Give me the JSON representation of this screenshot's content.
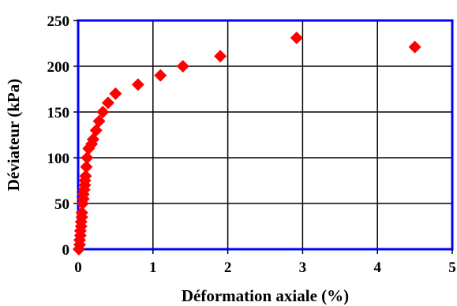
{
  "chart_data": {
    "type": "scatter",
    "xlabel": "Déformation axiale (%)",
    "ylabel": "Déviateur (kPa)",
    "xlim": [
      0,
      5
    ],
    "ylim": [
      0,
      250
    ],
    "xticks": [
      "0",
      "1",
      "2",
      "3",
      "4",
      "5"
    ],
    "yticks": [
      "0",
      "50",
      "100",
      "150",
      "200",
      "250"
    ],
    "grid": true,
    "marker": "diamond",
    "colors": {
      "marker": "#ff0000",
      "frame": "#0000ff",
      "grid": "#000000"
    },
    "series": [
      {
        "points": [
          [
            0.01,
            0
          ],
          [
            0.02,
            5
          ],
          [
            0.02,
            10
          ],
          [
            0.03,
            15
          ],
          [
            0.03,
            20
          ],
          [
            0.04,
            25
          ],
          [
            0.04,
            30
          ],
          [
            0.05,
            35
          ],
          [
            0.05,
            40
          ],
          [
            0.06,
            50
          ],
          [
            0.07,
            55
          ],
          [
            0.07,
            60
          ],
          [
            0.08,
            65
          ],
          [
            0.09,
            70
          ],
          [
            0.09,
            75
          ],
          [
            0.1,
            80
          ],
          [
            0.11,
            90
          ],
          [
            0.12,
            100
          ],
          [
            0.14,
            110
          ],
          [
            0.18,
            115
          ],
          [
            0.2,
            120
          ],
          [
            0.24,
            130
          ],
          [
            0.28,
            140
          ],
          [
            0.33,
            150
          ],
          [
            0.4,
            160
          ],
          [
            0.5,
            170
          ],
          [
            0.8,
            180
          ],
          [
            1.1,
            190
          ],
          [
            1.4,
            200
          ],
          [
            1.9,
            211
          ],
          [
            2.92,
            231
          ],
          [
            4.5,
            221
          ]
        ]
      }
    ]
  }
}
